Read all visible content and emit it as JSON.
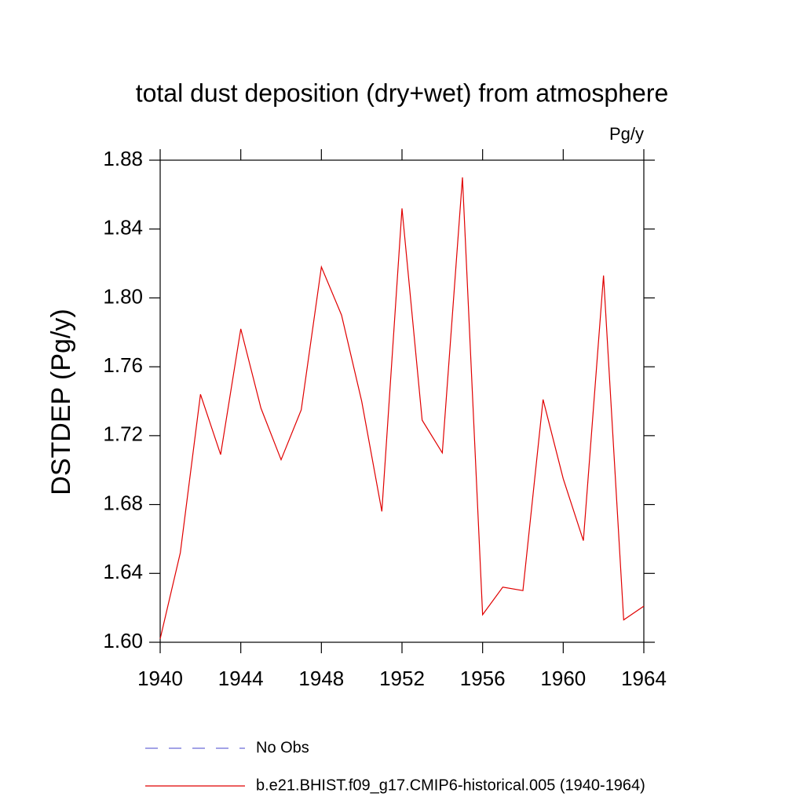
{
  "chart_data": {
    "type": "line",
    "title": "total dust deposition (dry+wet) from atmosphere",
    "units_label": "Pg/y",
    "y_label": "DSTDEP  (Pg/y)",
    "x": [
      1940,
      1941,
      1942,
      1943,
      1944,
      1945,
      1946,
      1947,
      1948,
      1949,
      1950,
      1951,
      1952,
      1953,
      1954,
      1955,
      1956,
      1957,
      1958,
      1959,
      1960,
      1961,
      1962,
      1963,
      1964
    ],
    "series": [
      {
        "name": "b.e21.BHIST.f09_g17.CMIP6-historical.005 (1940-1964)",
        "color": "#e00000",
        "values": [
          1.602,
          1.652,
          1.744,
          1.709,
          1.782,
          1.736,
          1.706,
          1.735,
          1.818,
          1.79,
          1.74,
          1.676,
          1.852,
          1.729,
          1.71,
          1.87,
          1.616,
          1.632,
          1.63,
          1.741,
          1.695,
          1.659,
          1.813,
          1.613,
          1.621
        ]
      }
    ],
    "legend_extra": {
      "name": "No Obs",
      "color": "#6b6bd6",
      "dashed": true
    },
    "xlim": [
      1940,
      1964
    ],
    "xticks": [
      1940,
      1944,
      1948,
      1952,
      1956,
      1960,
      1964
    ],
    "ylim": [
      1.6,
      1.88
    ],
    "yticks": [
      {
        "value": 1.6,
        "label": "1.60"
      },
      1.64,
      1.68,
      1.72,
      1.76,
      {
        "value": 1.8,
        "label": "1.80"
      },
      1.84,
      1.88
    ],
    "grid": false
  }
}
